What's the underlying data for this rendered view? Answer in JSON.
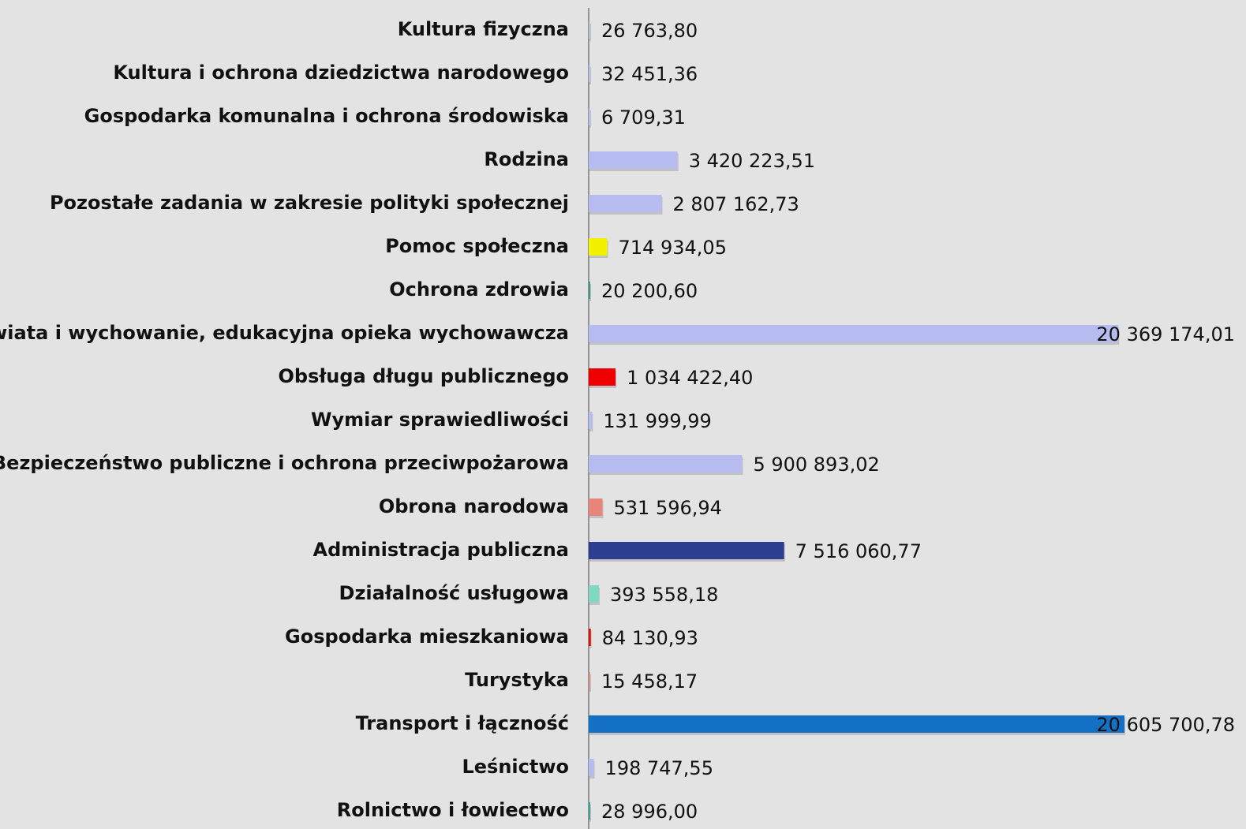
{
  "chart_data": {
    "type": "bar",
    "orientation": "horizontal",
    "categories": [
      "Kultura fizyczna",
      "Kultura i ochrona dziedzictwa narodowego",
      "Gospodarka komunalna i ochrona środowiska",
      "Rodzina",
      "Pozostałe zadania w zakresie polityki społecznej",
      "Pomoc społeczna",
      "Ochrona zdrowia",
      "Oświata i wychowanie, edukacyjna opieka wychowawcza",
      "Obsługa długu publicznego",
      "Wymiar sprawiedliwości",
      "Bezpieczeństwo publiczne i ochrona przeciwpożarowa",
      "Obrona narodowa",
      "Administracja publiczna",
      "Działalność usługowa",
      "Gospodarka mieszkaniowa",
      "Turystyka",
      "Transport i łączność",
      "Leśnictwo",
      "Rolnictwo i łowiectwo"
    ],
    "values": [
      26763.8,
      32451.36,
      6709.31,
      3420223.51,
      2807162.73,
      714934.05,
      20200.6,
      20369174.01,
      1034422.4,
      131999.99,
      5900893.02,
      531596.94,
      7516060.77,
      393558.18,
      84130.93,
      15458.17,
      20605700.78,
      198747.55,
      28996.0
    ],
    "value_labels": [
      "26 763,80",
      "32 451,36",
      "6 709,31",
      "3 420 223,51",
      "2 807 162,73",
      "714 934,05",
      "20 200,60",
      "20 369 174,01",
      "1 034 422,40",
      "131 999,99",
      "5 900 893,02",
      "531 596,94",
      "7 516 060,77",
      "393 558,18",
      "84 130,93",
      "15 458,17",
      "20 605 700,78",
      "198 747,55",
      "28 996,00"
    ],
    "colors": [
      "#b9bfd8",
      "#b9bfe8",
      "#b9bfe8",
      "#b6bcf0",
      "#b6bcf0",
      "#f2f200",
      "#3a9a8a",
      "#b6bcf0",
      "#ee0000",
      "#b6bcf0",
      "#b6bcf0",
      "#e8847a",
      "#2b3e90",
      "#7fd8c2",
      "#e01010",
      "#d89090",
      "#1470c4",
      "#b6bcf0",
      "#3aa0a0"
    ]
  }
}
